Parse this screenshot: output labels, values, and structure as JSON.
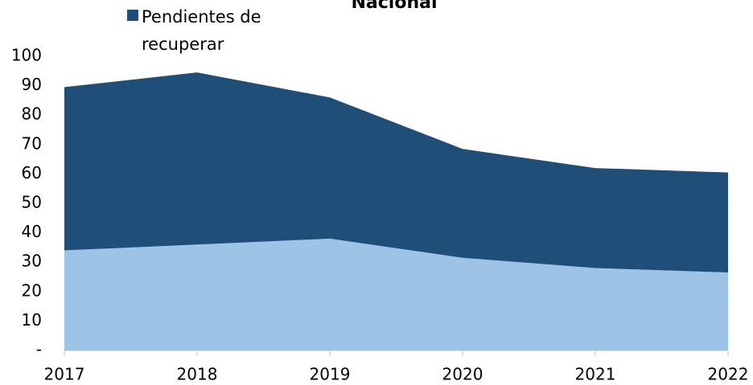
{
  "chart_data": {
    "type": "stacked_area",
    "title": "Nacional",
    "categories": [
      "2017",
      "2018",
      "2019",
      "2020",
      "2021",
      "2022"
    ],
    "series": [
      {
        "color": "#9dc3e6",
        "values": [
          34,
          36,
          38,
          31.5,
          28,
          26.5
        ]
      },
      {
        "name": "Pendientes de recuperar",
        "color": "#1f4e79",
        "values": [
          55.5,
          58.5,
          48,
          37,
          34,
          34
        ]
      }
    ],
    "ylim": [
      0,
      100
    ],
    "yticks": [
      {
        "value": 0,
        "label": "-"
      },
      10,
      20,
      30,
      40,
      50,
      60,
      70,
      80,
      90,
      100
    ],
    "grid": false
  }
}
